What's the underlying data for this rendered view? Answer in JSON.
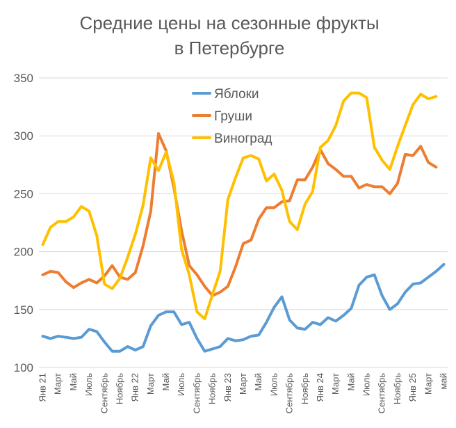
{
  "chart_data": {
    "type": "line",
    "title": [
      "Средние цены на сезонные фрукты",
      "в Петербурге"
    ],
    "categories": [
      "Янв 21",
      null,
      "Март",
      null,
      "Май",
      null,
      "Июль",
      null,
      "Сентябрь",
      null,
      "Ноябрь",
      null,
      "Янв 22",
      null,
      "Март",
      null,
      "Май",
      null,
      "Июль",
      null,
      "Сентябрь",
      null,
      "Ноябрь",
      null,
      "Янв 23",
      null,
      "Март",
      null,
      "Май",
      null,
      "Июль",
      null,
      "Сентябрь",
      null,
      "Ноябрь",
      null,
      "Янв 24",
      null,
      "Март",
      null,
      "Май",
      null,
      "Июль",
      null,
      "Сентябрь",
      null,
      "Ноябрь",
      null,
      "Янв 25",
      null,
      "Март",
      null,
      "май"
    ],
    "series": [
      {
        "name": "Яблоки",
        "color": "#5b9bd5",
        "values": [
          127,
          125,
          127,
          126,
          125,
          126,
          133,
          131,
          122,
          114,
          114,
          118,
          115,
          118,
          136,
          145,
          148,
          148,
          137,
          139,
          125,
          114,
          116,
          118,
          125,
          123,
          124,
          127,
          128,
          139,
          152,
          161,
          141,
          134,
          133,
          139,
          137,
          143,
          140,
          145,
          151,
          171,
          178,
          180,
          162,
          150,
          155,
          165,
          172,
          173,
          178,
          183,
          189
        ]
      },
      {
        "name": "Груши",
        "color": "#ed7d31",
        "values": [
          180,
          183,
          182,
          174,
          169,
          173,
          176,
          173,
          179,
          188,
          178,
          176,
          182,
          205,
          235,
          302,
          287,
          255,
          218,
          188,
          180,
          170,
          162,
          165,
          170,
          187,
          207,
          210,
          228,
          238,
          238,
          243,
          244,
          262,
          262,
          273,
          288,
          276,
          271,
          265,
          265,
          255,
          258,
          256,
          256,
          250,
          259,
          284,
          283,
          291,
          277,
          273,
          null
        ]
      },
      {
        "name": "Виноград",
        "color": "#ffc000",
        "values": [
          206,
          221,
          226,
          226,
          230,
          239,
          235,
          214,
          172,
          168,
          177,
          195,
          215,
          240,
          281,
          270,
          286,
          260,
          202,
          180,
          148,
          142,
          163,
          183,
          245,
          264,
          281,
          283,
          280,
          261,
          267,
          253,
          226,
          219,
          241,
          252,
          290,
          296,
          309,
          330,
          337,
          337,
          333,
          290,
          279,
          271,
          291,
          309,
          327,
          336,
          332,
          334,
          null
        ]
      }
    ],
    "ylim": [
      100,
      350
    ],
    "yticks": [
      100,
      150,
      200,
      250,
      300,
      350
    ],
    "grid": true
  }
}
